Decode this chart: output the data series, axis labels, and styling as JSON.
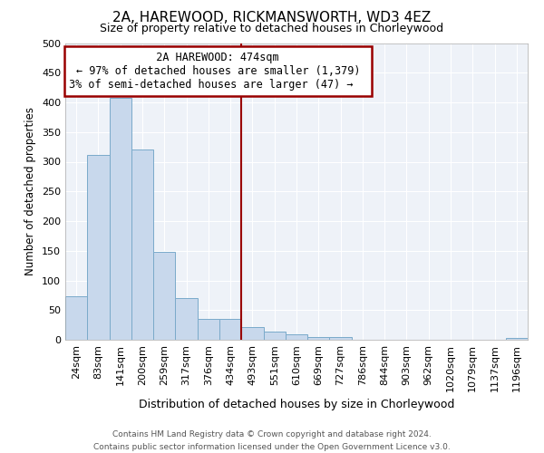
{
  "title": "2A, HAREWOOD, RICKMANSWORTH, WD3 4EZ",
  "subtitle": "Size of property relative to detached houses in Chorleywood",
  "xlabel": "Distribution of detached houses by size in Chorleywood",
  "ylabel": "Number of detached properties",
  "bar_color": "#c8d8ec",
  "bar_edge_color": "#7aaaca",
  "background_color": "#ffffff",
  "plot_bg_color": "#eef2f8",
  "grid_color": "#ffffff",
  "bin_labels": [
    "24sqm",
    "83sqm",
    "141sqm",
    "200sqm",
    "259sqm",
    "317sqm",
    "376sqm",
    "434sqm",
    "493sqm",
    "551sqm",
    "610sqm",
    "669sqm",
    "727sqm",
    "786sqm",
    "844sqm",
    "903sqm",
    "962sqm",
    "1020sqm",
    "1079sqm",
    "1137sqm",
    "1196sqm"
  ],
  "bar_heights": [
    74,
    311,
    407,
    320,
    148,
    70,
    35,
    35,
    21,
    13,
    9,
    5,
    5,
    0,
    0,
    0,
    0,
    0,
    0,
    0,
    3
  ],
  "ylim": [
    0,
    500
  ],
  "yticks": [
    0,
    50,
    100,
    150,
    200,
    250,
    300,
    350,
    400,
    450,
    500
  ],
  "vline_index": 8,
  "vline_color": "#990000",
  "annotation_title": "2A HAREWOOD: 474sqm",
  "annotation_line1": "← 97% of detached houses are smaller (1,379)",
  "annotation_line2": "3% of semi-detached houses are larger (47) →",
  "annotation_box_color": "#ffffff",
  "annotation_box_edge_color": "#990000",
  "footer_line1": "Contains HM Land Registry data © Crown copyright and database right 2024.",
  "footer_line2": "Contains public sector information licensed under the Open Government Licence v3.0."
}
